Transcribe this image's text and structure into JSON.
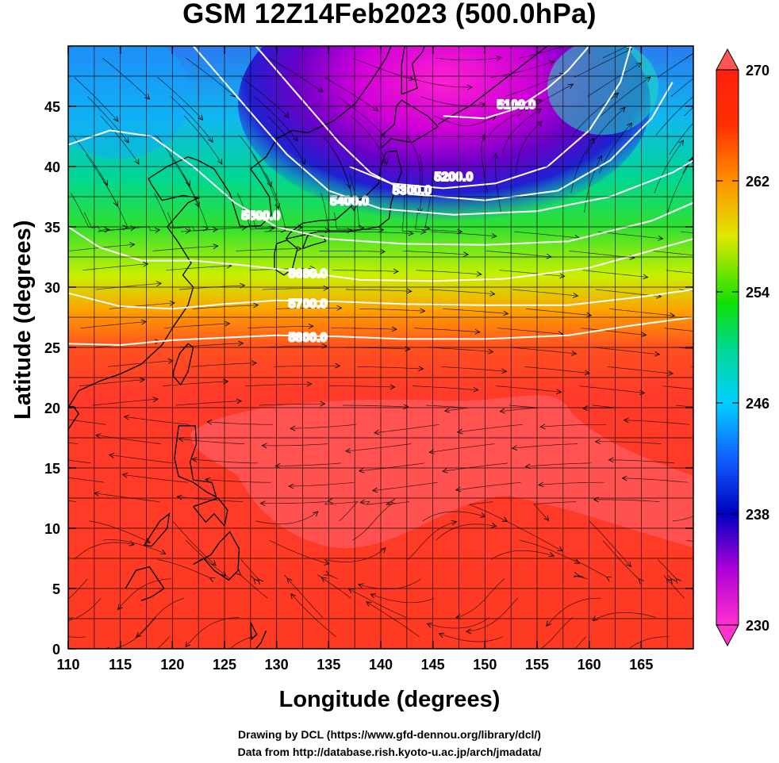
{
  "title": "GSM 12Z14Feb2023 (500.0hPa)",
  "x_axis": {
    "label": "Longitude (degrees)",
    "range": [
      110,
      170
    ],
    "ticks": [
      "110",
      "115",
      "120",
      "125",
      "130",
      "135",
      "140",
      "145",
      "150",
      "155",
      "160",
      "165"
    ]
  },
  "y_axis": {
    "label": "Latitude  (degrees)",
    "range": [
      0,
      50
    ],
    "ticks": [
      "0",
      "5",
      "10",
      "15",
      "20",
      "25",
      "30",
      "35",
      "40",
      "45"
    ]
  },
  "colorbar": {
    "ticks": [
      "230",
      "238",
      "246",
      "254",
      "262",
      "270"
    ],
    "min": 230,
    "max": 270,
    "colors": [
      "#ff33cc",
      "#a000d0",
      "#0000c0",
      "#0050ff",
      "#00d0ff",
      "#00e040",
      "#60e000",
      "#f0e000",
      "#ff8000",
      "#ff2000",
      "#ff4040"
    ]
  },
  "contours": [
    {
      "label": "5100.0"
    },
    {
      "label": "5200.0"
    },
    {
      "label": "5300.0"
    },
    {
      "label": "5400.0"
    },
    {
      "label": "5500.0"
    },
    {
      "label": "5600.0"
    },
    {
      "label": "5700.0"
    },
    {
      "label": "5800.0"
    }
  ],
  "credits": {
    "line1": "Drawing by DCL (https://www.gfd-dennou.org/library/dcl/)",
    "line2": "Data from http://database.rish.kyoto-u.ac.jp/arch/jmadata/"
  }
}
